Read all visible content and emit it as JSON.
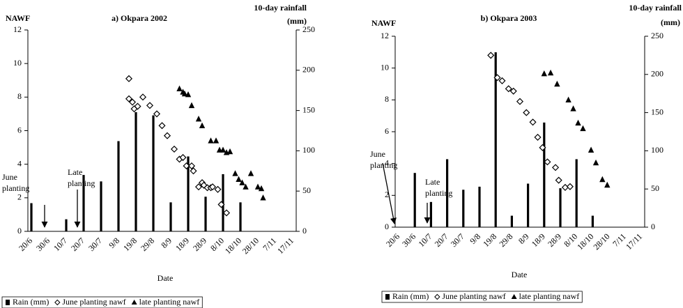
{
  "chart_data": [
    {
      "type": "combo",
      "title": "a) Okpara 2002",
      "y_label": "NAWF",
      "y2_label": [
        "10-day rainfall",
        "(mm)"
      ],
      "x_label": "Date",
      "xlim": [
        "20/6",
        "17/11"
      ],
      "xticks": [
        "20/6",
        "30/6",
        "10/7",
        "20/7",
        "30/7",
        "9/8",
        "19/8",
        "29/8",
        "8/9",
        "18/9",
        "28/9",
        "8/10",
        "18/10",
        "28/10",
        "7/11",
        "17/11"
      ],
      "ylim": [
        0,
        12
      ],
      "yticks": [
        0,
        2,
        4,
        6,
        8,
        10,
        12
      ],
      "y2lim": [
        0,
        250
      ],
      "y2ticks": [
        0,
        50,
        100,
        150,
        200,
        250
      ],
      "annotations": [
        [
          "June",
          "planting"
        ],
        [
          "Late",
          "planting"
        ]
      ],
      "series": [
        {
          "name": "Rain (mm)",
          "kind": "bar",
          "axis": "y2",
          "color": "#000000",
          "x": [
            "20/6",
            "10/7",
            "20/7",
            "30/7",
            "9/8",
            "19/8",
            "29/8",
            "8/9",
            "18/9",
            "28/9",
            "8/10",
            "18/10"
          ],
          "values": [
            35,
            15,
            70,
            62,
            112,
            148,
            144,
            36,
            93,
            43,
            71,
            36
          ]
        },
        {
          "name": "June planting nawf",
          "kind": "diamond",
          "color": "#000000",
          "x": [
            "15/8",
            "15/8",
            "17/8",
            "18/8",
            "20/8",
            "23/8",
            "27/8",
            "31/8",
            "3/9",
            "6/9",
            "10/9",
            "13/9",
            "15/9",
            "17/9",
            "20/9",
            "21/9",
            "24/9",
            "26/9",
            "27/9",
            "29/9",
            "1/10",
            "2/10",
            "5/10",
            "7/10",
            "10/10"
          ],
          "values": [
            9.1,
            7.9,
            7.7,
            7.3,
            7.45,
            8.0,
            7.5,
            7.0,
            6.3,
            5.7,
            4.9,
            4.3,
            4.4,
            3.9,
            3.9,
            3.6,
            2.65,
            2.9,
            2.75,
            2.6,
            2.6,
            2.65,
            2.5,
            1.6,
            1.1
          ]
        },
        {
          "name": "late planting nawf",
          "kind": "triangle",
          "color": "#000000",
          "x": [
            "13/9",
            "15/9",
            "16/9",
            "18/9",
            "20/9",
            "24/9",
            "26/9",
            "1/10",
            "4/10",
            "6/10",
            "8/10",
            "10/10",
            "12/10",
            "15/10",
            "17/10",
            "19/10",
            "21/10",
            "24/10",
            "28/10",
            "30/10",
            "31/10"
          ],
          "values": [
            8.5,
            8.3,
            8.2,
            8.15,
            7.5,
            6.7,
            6.3,
            5.4,
            5.4,
            4.85,
            4.85,
            4.7,
            4.75,
            3.45,
            3.1,
            2.9,
            2.65,
            3.45,
            2.65,
            2.55,
            2.0
          ]
        }
      ]
    },
    {
      "type": "combo",
      "title": "b) Okpara 2003",
      "y_label": "NAWF",
      "y2_label": [
        "10-day rainfall",
        "(mm)"
      ],
      "x_label": "Date",
      "xlim": [
        "20/6",
        "17/11"
      ],
      "xticks": [
        "20/6",
        "30/6",
        "10/7",
        "20/7",
        "30/7",
        "9/8",
        "19/8",
        "29/8",
        "8/9",
        "18/9",
        "28/9",
        "8/10",
        "18/10",
        "28/10",
        "7/11",
        "17/11"
      ],
      "ylim": [
        0,
        12
      ],
      "yticks": [
        0,
        2,
        4,
        6,
        8,
        10,
        12
      ],
      "y2lim": [
        0,
        250
      ],
      "y2ticks": [
        0,
        50,
        100,
        150,
        200,
        250
      ],
      "annotations": [
        [
          "June",
          "planting"
        ],
        [
          "Late",
          "planting"
        ]
      ],
      "series": [
        {
          "name": "Rain (mm)",
          "kind": "bar",
          "axis": "y2",
          "color": "#000000",
          "x": [
            "30/6",
            "10/7",
            "20/7",
            "30/7",
            "9/8",
            "19/8",
            "29/8",
            "8/9",
            "18/9",
            "28/9",
            "8/10",
            "18/10"
          ],
          "values": [
            71,
            33,
            89,
            49,
            53,
            229,
            15,
            57,
            137,
            51,
            89,
            15
          ]
        },
        {
          "name": "June planting nawf",
          "kind": "diamond",
          "color": "#000000",
          "x": [
            "16/8",
            "20/8",
            "23/8",
            "27/8",
            "30/8",
            "3/9",
            "7/9",
            "11/9",
            "14/9",
            "17/9",
            "20/9",
            "25/9",
            "27/9",
            "1/10",
            "4/10"
          ],
          "values": [
            10.8,
            9.4,
            9.2,
            8.7,
            8.55,
            7.9,
            7.2,
            6.6,
            5.65,
            5.0,
            4.1,
            3.75,
            2.95,
            2.5,
            2.55
          ]
        },
        {
          "name": "late planting nawf",
          "kind": "triangle",
          "color": "#000000",
          "x": [
            "18/9",
            "22/9",
            "26/9",
            "3/10",
            "6/10",
            "9/10",
            "12/10",
            "17/10",
            "20/10",
            "24/10",
            "27/10"
          ],
          "values": [
            9.65,
            9.7,
            9.0,
            8.0,
            7.45,
            6.55,
            6.2,
            4.85,
            4.05,
            3.0,
            2.65
          ]
        }
      ]
    }
  ]
}
